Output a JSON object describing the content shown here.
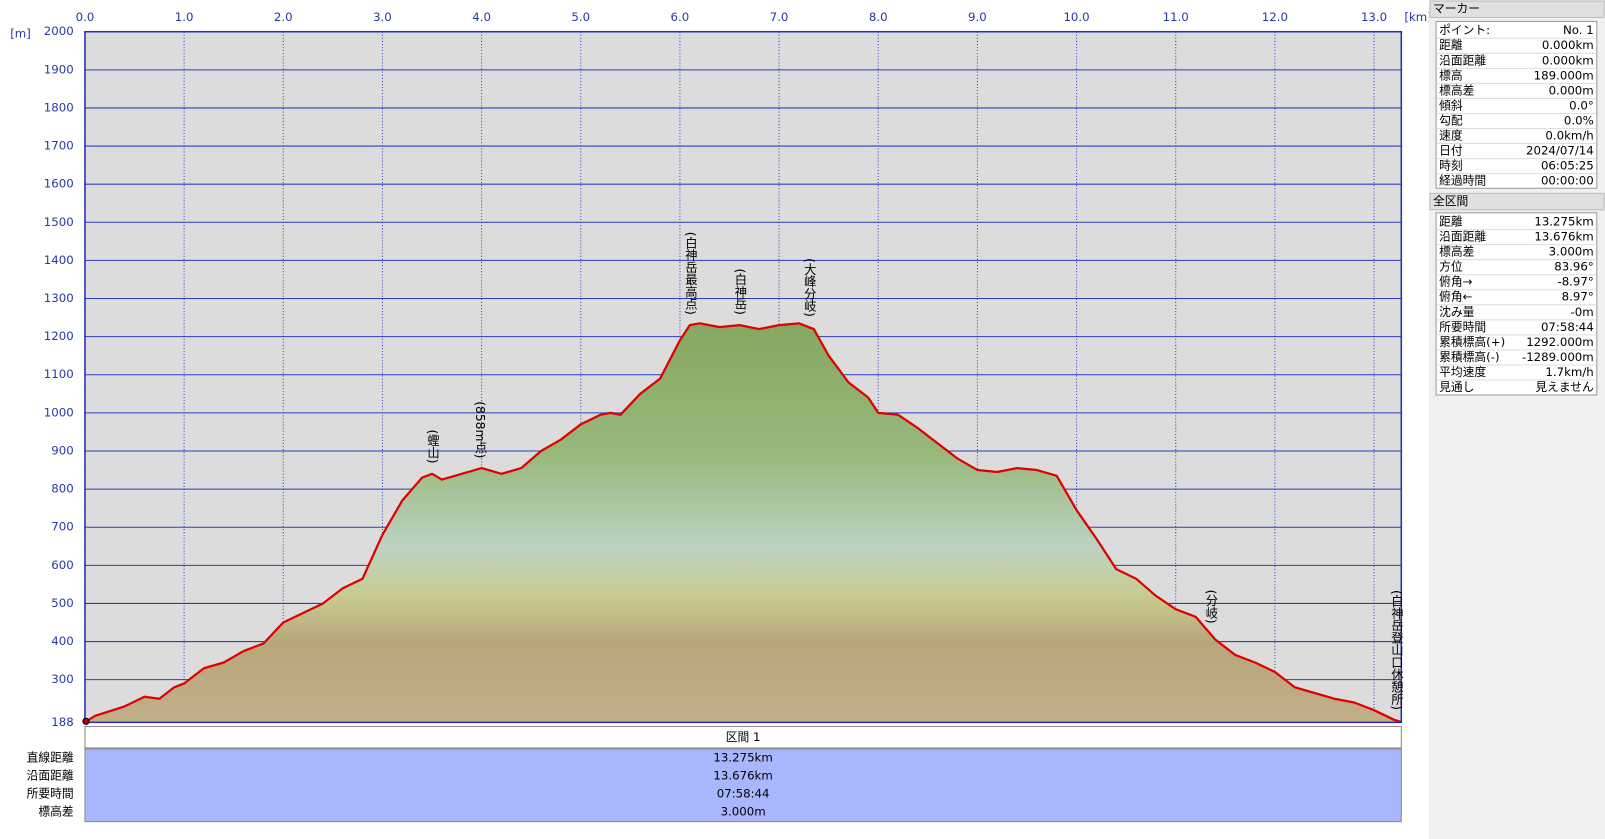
{
  "chart_data": {
    "type": "area",
    "x_unit": "[km]",
    "y_unit": "[m]",
    "x": [
      0,
      0.1,
      0.4,
      0.6,
      0.75,
      0.9,
      1.0,
      1.2,
      1.4,
      1.6,
      1.8,
      2.0,
      2.2,
      2.4,
      2.6,
      2.8,
      3.0,
      3.2,
      3.3,
      3.4,
      3.5,
      3.6,
      3.8,
      4.0,
      4.2,
      4.4,
      4.6,
      4.8,
      5.0,
      5.2,
      5.3,
      5.4,
      5.6,
      5.8,
      6.0,
      6.1,
      6.2,
      6.4,
      6.6,
      6.8,
      7.0,
      7.2,
      7.35,
      7.5,
      7.7,
      7.9,
      8.0,
      8.2,
      8.4,
      8.6,
      8.8,
      9.0,
      9.2,
      9.4,
      9.6,
      9.8,
      10.0,
      10.2,
      10.4,
      10.6,
      10.8,
      11.0,
      11.2,
      11.4,
      11.6,
      11.8,
      12.0,
      12.2,
      12.4,
      12.6,
      12.8,
      13.0,
      13.2,
      13.275
    ],
    "values": [
      188,
      205,
      230,
      255,
      250,
      280,
      290,
      330,
      345,
      375,
      395,
      450,
      475,
      500,
      540,
      565,
      680,
      770,
      800,
      830,
      840,
      825,
      840,
      855,
      840,
      855,
      900,
      930,
      970,
      995,
      1000,
      995,
      1050,
      1090,
      1190,
      1230,
      1235,
      1225,
      1230,
      1220,
      1230,
      1235,
      1220,
      1150,
      1080,
      1040,
      1000,
      995,
      960,
      920,
      880,
      850,
      845,
      855,
      850,
      835,
      745,
      670,
      590,
      565,
      520,
      485,
      465,
      405,
      365,
      345,
      320,
      280,
      265,
      250,
      240,
      220,
      195,
      189
    ],
    "color": "#e00000",
    "xlim": [
      0,
      13.275
    ],
    "ylim": [
      188,
      2000
    ],
    "xticks": [
      {
        "value": 0,
        "label": "0.0"
      },
      {
        "value": 1,
        "label": "1.0"
      },
      {
        "value": 2,
        "label": "2.0"
      },
      {
        "value": 3,
        "label": "3.0"
      },
      {
        "value": 4,
        "label": "4.0"
      },
      {
        "value": 5,
        "label": "5.0"
      },
      {
        "value": 6,
        "label": "6.0"
      },
      {
        "value": 7,
        "label": "7.0"
      },
      {
        "value": 8,
        "label": "8.0"
      },
      {
        "value": 9,
        "label": "9.0"
      },
      {
        "value": 10,
        "label": "10.0"
      },
      {
        "value": 11,
        "label": "11.0"
      },
      {
        "value": 12,
        "label": "12.0"
      },
      {
        "value": 13,
        "label": "13.0"
      }
    ],
    "yticks": [
      188,
      300,
      400,
      500,
      600,
      700,
      800,
      900,
      1000,
      1100,
      1200,
      1300,
      1400,
      1500,
      1600,
      1700,
      1800,
      1900,
      2000
    ],
    "grid": true,
    "waypoints": [
      {
        "name": "(蟶山)",
        "x": 3.5
      },
      {
        "name": "(858m点)",
        "x": 3.98
      },
      {
        "name": "(白神岳最高点)",
        "x": 6.1
      },
      {
        "name": "(白神岳)",
        "x": 6.6
      },
      {
        "name": "(大峰分岐)",
        "x": 7.3
      },
      {
        "name": "(分岐)",
        "x": 11.35
      },
      {
        "name": "(白神岳登山口休憩所)",
        "x": 13.22
      }
    ]
  },
  "section_table": {
    "title": "区間 1",
    "rows": [
      [
        "直線距離",
        "13.275km"
      ],
      [
        "沿面距離",
        "13.676km"
      ],
      [
        "所要時間",
        "07:58:44"
      ],
      [
        "標高差",
        "3.000m"
      ]
    ]
  },
  "marker_panel": {
    "title": "マーカー",
    "rows": [
      [
        "ポイント:",
        "No. 1"
      ],
      [
        "距離",
        "0.000km"
      ],
      [
        "沿面距離",
        "0.000km"
      ],
      [
        "標高",
        "189.000m"
      ],
      [
        "標高差",
        "0.000m"
      ],
      [
        "傾斜",
        "0.0°"
      ],
      [
        "勾配",
        "0.0%"
      ],
      [
        "速度",
        "0.0km/h"
      ],
      [
        "日付",
        "2024/07/14"
      ],
      [
        "時刻",
        "06:05:25"
      ],
      [
        "経過時間",
        "00:00:00"
      ]
    ]
  },
  "total_panel": {
    "title": "全区間",
    "rows": [
      [
        "距離",
        "13.275km"
      ],
      [
        "沿面距離",
        "13.676km"
      ],
      [
        "標高差",
        "3.000m"
      ],
      [
        "方位",
        "83.96°"
      ],
      [
        "俯角→",
        "-8.97°"
      ],
      [
        "俯角←",
        "8.97°"
      ],
      [
        "沈み量",
        "-0m"
      ],
      [
        "所要時間",
        "07:58:44"
      ],
      [
        "累積標高(+)",
        "1292.000m"
      ],
      [
        "累積標高(-)",
        "-1289.000m"
      ],
      [
        "平均速度",
        "1.7km/h"
      ],
      [
        "見通し",
        "見えません"
      ]
    ]
  }
}
